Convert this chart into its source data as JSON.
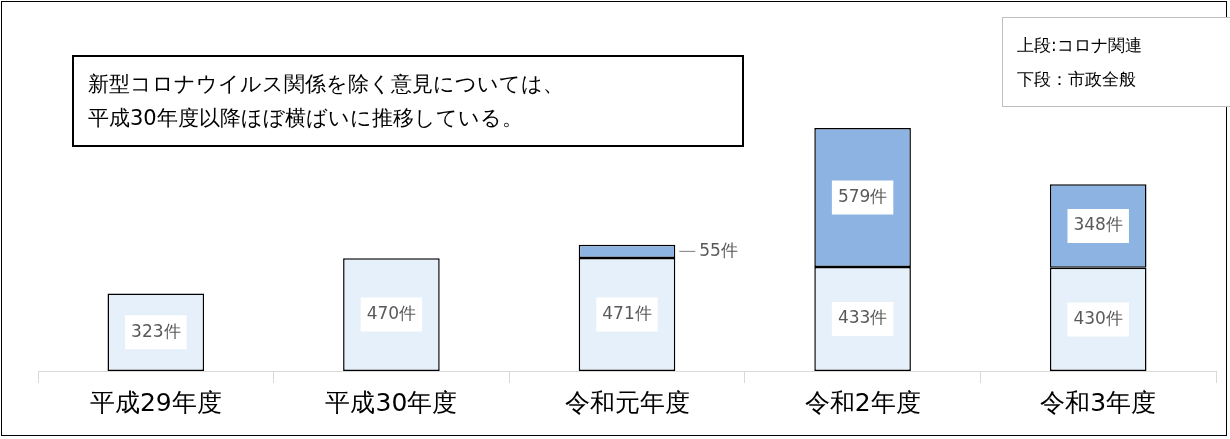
{
  "chart_data": {
    "type": "bar",
    "stacked": true,
    "tick_labels": "x",
    "categories": [
      "平成29年度",
      "平成30年度",
      "令和元年度",
      "令和2年度",
      "令和3年度"
    ],
    "series": [
      {
        "color": "#e6f0fa",
        "values": [
          323,
          470,
          471,
          433,
          430
        ],
        "value_labels": [
          "323件",
          "470件",
          "471件",
          "433件",
          "430件"
        ]
      },
      {
        "color": "#8db3e2",
        "values": [
          null,
          null,
          55,
          579,
          348
        ],
        "value_labels": [
          null,
          null,
          "55件",
          "579件",
          "348件"
        ]
      }
    ],
    "annotations": [
      "新型コロナウイルス関係を除く意見については、",
      "平成30年度以降ほぼ横ばいに推移している。",
      "上段:コロナ関連",
      "下段：市政全般"
    ]
  }
}
